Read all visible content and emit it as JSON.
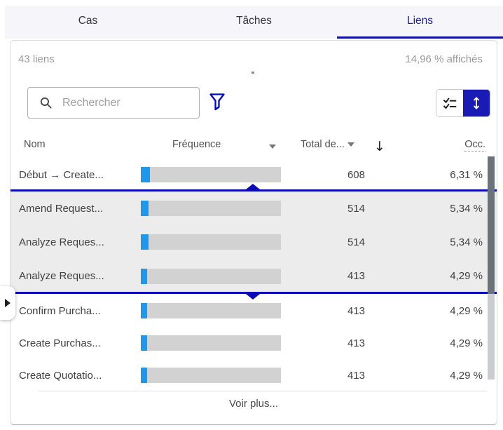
{
  "tabs": [
    {
      "label": "Cas",
      "active": false
    },
    {
      "label": "Tâches",
      "active": false
    },
    {
      "label": "Liens",
      "active": true
    }
  ],
  "summary": {
    "count_label": "43 liens",
    "shown_label": "14,96 % affichés"
  },
  "search": {
    "placeholder": "Rechercher",
    "value": ""
  },
  "icons": {
    "search": "magnifier",
    "filter": "funnel",
    "criteria_view": "checklist",
    "sort_view": "vertical-double-arrow",
    "sort_descending": "down-arrow",
    "frequency_dropdown": "caret-down",
    "total_dropdown": "caret-down",
    "expand_panel": "right-triangle"
  },
  "table": {
    "headers": {
      "name": "Nom",
      "frequency": "Fréquence",
      "total": "Total de...",
      "sort_arrow": "↓",
      "occ": "Occ."
    },
    "rows": [
      {
        "name": "Début → Create...",
        "total": "608",
        "occ": "6,31 %",
        "occ_pct": 6.31,
        "group": "above"
      },
      {
        "name": "Amend Request...",
        "total": "514",
        "occ": "5,34 %",
        "occ_pct": 5.34,
        "group": "selected"
      },
      {
        "name": "Analyze Reques...",
        "total": "514",
        "occ": "5,34 %",
        "occ_pct": 5.34,
        "group": "selected"
      },
      {
        "name": "Analyze Reques...",
        "total": "413",
        "occ": "4,29 %",
        "occ_pct": 4.29,
        "group": "selected"
      },
      {
        "name": "Confirm Purcha...",
        "total": "413",
        "occ": "4,29 %",
        "occ_pct": 4.29,
        "group": "below"
      },
      {
        "name": "Create Purchas...",
        "total": "413",
        "occ": "4,29 %",
        "occ_pct": 4.29,
        "group": "below"
      },
      {
        "name": "Create Quotatio...",
        "total": "413",
        "occ": "4,29 %",
        "occ_pct": 4.29,
        "group": "below"
      }
    ],
    "more_label": "Voir plus..."
  },
  "colors": {
    "accent_blue": "#1a1ab5",
    "tab_underline": "#0f0fa4",
    "tabbar_bg": "#f6f6fa",
    "filter_icon_blue": "#0008cc",
    "bar_blue": "#1f97ea",
    "bar_gray": "#d2d2d2",
    "selection_bg": "#ececec",
    "range_divider_blue": "#0a0ab8",
    "scrollbar_thumb": "#6b727a",
    "muted_text": "#9a9a9a"
  }
}
